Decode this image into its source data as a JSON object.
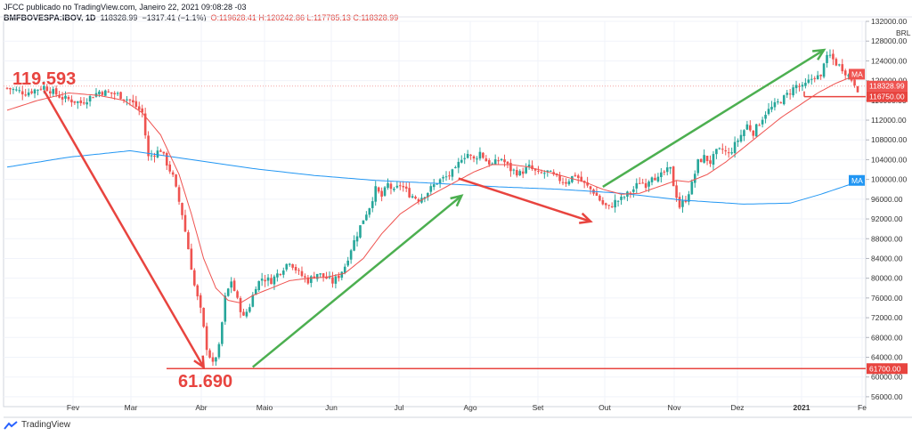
{
  "header": {
    "line1": "JFCC publicado no TradingView.com, Janeiro 22, 2021 09:08:28 -03",
    "symbol": "BMFBOVESPA:IBOV, 1D",
    "last": "118328.99",
    "change": "−1317.41 (−1.1%)",
    "ohlc": "O:119628.41 H:120242.86 L:117785.13 C:118328.99"
  },
  "footer": {
    "brand": "TradingView"
  },
  "chart_data": {
    "type": "candlestick",
    "currency_label": "BRL",
    "ylim": [
      54000,
      132000
    ],
    "yticks": [
      56000,
      60000,
      64000,
      68000,
      72000,
      76000,
      80000,
      84000,
      88000,
      92000,
      96000,
      100000,
      104000,
      108000,
      112000,
      116000,
      120000,
      124000,
      128000,
      132000
    ],
    "ytick_labels": [
      "56000.00",
      "60000.00",
      "64000.00",
      "68000.00",
      "72000.00",
      "76000.00",
      "80000.00",
      "84000.00",
      "88000.00",
      "92000.00",
      "96000.00",
      "100000.00",
      "104000.00",
      "108000.00",
      "112000.00",
      "116000.00",
      "120000.00",
      "124000.00",
      "128000.00",
      "132000.00"
    ],
    "x_labels": [
      "Fev",
      "Mar",
      "Abr",
      "Maio",
      "Jun",
      "Jul",
      "Ago",
      "Set",
      "Out",
      "Nov",
      "Dez",
      "2021",
      "Fe"
    ],
    "price_path": [
      [
        0,
        118500
      ],
      [
        6,
        117500
      ],
      [
        12,
        118800
      ],
      [
        18,
        116500
      ],
      [
        24,
        115500
      ],
      [
        30,
        117800
      ],
      [
        36,
        117200
      ],
      [
        40,
        116000
      ],
      [
        44,
        113500
      ],
      [
        46,
        104500
      ],
      [
        50,
        106000
      ],
      [
        54,
        100500
      ],
      [
        57,
        93000
      ],
      [
        59,
        86000
      ],
      [
        61,
        78500
      ],
      [
        63,
        73500
      ],
      [
        65,
        66000
      ],
      [
        67,
        62500
      ],
      [
        69,
        66000
      ],
      [
        71,
        76000
      ],
      [
        73,
        79500
      ],
      [
        75,
        75500
      ],
      [
        77,
        72000
      ],
      [
        79,
        74500
      ],
      [
        81,
        78500
      ],
      [
        83,
        80000
      ],
      [
        86,
        79500
      ],
      [
        89,
        81500
      ],
      [
        92,
        83500
      ],
      [
        95,
        81000
      ],
      [
        98,
        79500
      ],
      [
        101,
        81000
      ],
      [
        104,
        80000
      ],
      [
        106,
        79200
      ],
      [
        108,
        80500
      ],
      [
        110,
        82500
      ],
      [
        112,
        86000
      ],
      [
        114,
        89000
      ],
      [
        116,
        92000
      ],
      [
        118,
        94500
      ],
      [
        120,
        98000
      ],
      [
        122,
        96500
      ],
      [
        124,
        99000
      ],
      [
        126,
        97500
      ],
      [
        128,
        99000
      ],
      [
        131,
        97000
      ],
      [
        134,
        96000
      ],
      [
        137,
        97500
      ],
      [
        140,
        99500
      ],
      [
        143,
        100500
      ],
      [
        146,
        101800
      ],
      [
        148,
        104500
      ],
      [
        150,
        105200
      ],
      [
        152,
        104000
      ],
      [
        154,
        105500
      ],
      [
        156,
        103800
      ],
      [
        158,
        103000
      ],
      [
        161,
        104200
      ],
      [
        164,
        102000
      ],
      [
        167,
        101200
      ],
      [
        170,
        102500
      ],
      [
        173,
        101000
      ],
      [
        176,
        101500
      ],
      [
        179,
        100200
      ],
      [
        182,
        99500
      ],
      [
        185,
        101000
      ],
      [
        188,
        99000
      ],
      [
        191,
        97500
      ],
      [
        194,
        95000
      ],
      [
        196,
        94200
      ],
      [
        198,
        95500
      ],
      [
        200,
        96000
      ],
      [
        202,
        97000
      ],
      [
        204,
        98000
      ],
      [
        206,
        99500
      ],
      [
        208,
        99000
      ],
      [
        210,
        101000
      ],
      [
        212,
        100000
      ],
      [
        214,
        101500
      ],
      [
        216,
        102000
      ],
      [
        217,
        99000
      ],
      [
        219,
        94500
      ],
      [
        221,
        96000
      ],
      [
        223,
        99000
      ],
      [
        225,
        103500
      ],
      [
        227,
        104500
      ],
      [
        229,
        103500
      ],
      [
        231,
        105500
      ],
      [
        233,
        106000
      ],
      [
        235,
        105000
      ],
      [
        237,
        107000
      ],
      [
        239,
        109000
      ],
      [
        241,
        111000
      ],
      [
        243,
        109500
      ],
      [
        245,
        111500
      ],
      [
        247,
        113500
      ],
      [
        249,
        114500
      ],
      [
        251,
        115500
      ],
      [
        253,
        116500
      ],
      [
        255,
        117800
      ],
      [
        257,
        119000
      ],
      [
        259,
        118500
      ],
      [
        261,
        119800
      ],
      [
        263,
        121000
      ],
      [
        265,
        120500
      ],
      [
        266,
        124000
      ],
      [
        268,
        125000
      ],
      [
        270,
        123500
      ],
      [
        272,
        122500
      ],
      [
        274,
        121000
      ],
      [
        276,
        119500
      ],
      [
        277,
        118329
      ]
    ],
    "ma_short_path": [
      [
        0,
        114000
      ],
      [
        10,
        116000
      ],
      [
        20,
        117500
      ],
      [
        30,
        117000
      ],
      [
        38,
        116000
      ],
      [
        44,
        113500
      ],
      [
        50,
        109000
      ],
      [
        56,
        101000
      ],
      [
        60,
        93000
      ],
      [
        64,
        84000
      ],
      [
        68,
        78000
      ],
      [
        72,
        75500
      ],
      [
        76,
        75000
      ],
      [
        80,
        76500
      ],
      [
        86,
        78000
      ],
      [
        92,
        79500
      ],
      [
        98,
        80000
      ],
      [
        104,
        80200
      ],
      [
        110,
        81000
      ],
      [
        116,
        84000
      ],
      [
        122,
        89000
      ],
      [
        128,
        93000
      ],
      [
        134,
        95500
      ],
      [
        140,
        97500
      ],
      [
        146,
        99500
      ],
      [
        152,
        101500
      ],
      [
        158,
        103000
      ],
      [
        164,
        103000
      ],
      [
        170,
        102500
      ],
      [
        176,
        101500
      ],
      [
        182,
        100500
      ],
      [
        188,
        99500
      ],
      [
        194,
        98000
      ],
      [
        200,
        97000
      ],
      [
        206,
        97200
      ],
      [
        212,
        98500
      ],
      [
        218,
        99800
      ],
      [
        222,
        99500
      ],
      [
        228,
        101000
      ],
      [
        234,
        103500
      ],
      [
        240,
        106500
      ],
      [
        246,
        109500
      ],
      [
        252,
        112500
      ],
      [
        258,
        115000
      ],
      [
        264,
        117500
      ],
      [
        270,
        119500
      ],
      [
        274,
        120500
      ],
      [
        277,
        120800
      ]
    ],
    "ma_long_path": [
      [
        0,
        102500
      ],
      [
        20,
        104500
      ],
      [
        40,
        105800
      ],
      [
        60,
        104000
      ],
      [
        80,
        102200
      ],
      [
        100,
        100800
      ],
      [
        120,
        99800
      ],
      [
        140,
        99200
      ],
      [
        160,
        98500
      ],
      [
        180,
        98000
      ],
      [
        200,
        97200
      ],
      [
        220,
        95800
      ],
      [
        240,
        95000
      ],
      [
        255,
        95200
      ],
      [
        265,
        97000
      ],
      [
        277,
        99500
      ]
    ],
    "ma_label": "MA",
    "last_price_label": "118328.99",
    "level_labels": {
      "upper": "116750.00",
      "lower": "61700.00"
    },
    "level_values": {
      "upper": 116750,
      "lower": 61700
    },
    "annotations": {
      "top_value": "119.593",
      "bottom_value": "61.690"
    },
    "trend_arrows": [
      {
        "color": "red",
        "from": [
          12,
          118000
        ],
        "to": [
          64,
          62000
        ]
      },
      {
        "color": "green",
        "from": [
          80,
          62000
        ],
        "to": [
          148,
          96700
        ]
      },
      {
        "color": "red",
        "from": [
          147,
          100200
        ],
        "to": [
          190,
          91500
        ]
      },
      {
        "color": "green",
        "from": [
          194,
          98500
        ],
        "to": [
          266,
          126200
        ]
      }
    ],
    "colors": {
      "up": "#26a69a",
      "down": "#ef5350",
      "ma_short": "#ef5350",
      "ma_long": "#2196f3",
      "arrow_red": "#e8443f",
      "arrow_green": "#4caf50"
    }
  }
}
